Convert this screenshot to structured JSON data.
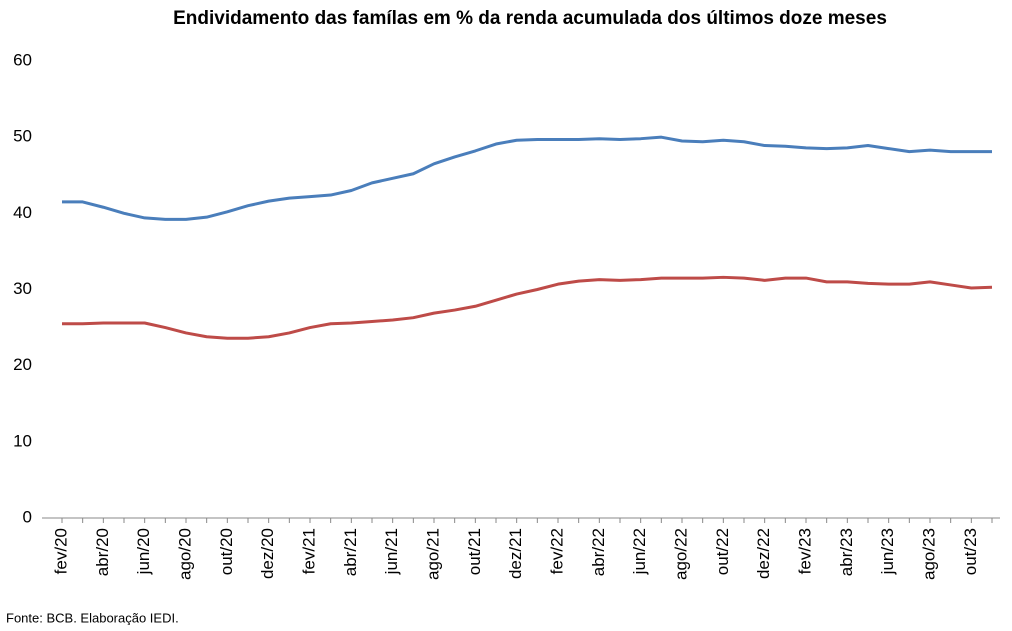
{
  "chart_data": {
    "type": "line",
    "title": "Endividamento das famílas em % da renda acumulada dos últimos doze meses",
    "source": "Fonte: BCB. Elaboração IEDI.",
    "categories": [
      "fev/20",
      null,
      "abr/20",
      null,
      "jun/20",
      null,
      "ago/20",
      null,
      "out/20",
      null,
      "dez/20",
      null,
      "fev/21",
      null,
      "abr/21",
      null,
      "jun/21",
      null,
      "ago/21",
      null,
      "out/21",
      null,
      "dez/21",
      null,
      "fev/22",
      null,
      "abr/22",
      null,
      "jun/22",
      null,
      "ago/22",
      null,
      "out/22",
      null,
      "dez/22",
      null,
      "fev/23",
      null,
      "abr/23",
      null,
      "jun/23",
      null,
      "ago/23",
      null,
      "out/23",
      null
    ],
    "series": [
      {
        "color": "#4a7ebb",
        "values": [
          41.5,
          41.5,
          40.8,
          40,
          39.4,
          39.2,
          39.2,
          39.5,
          40.2,
          41,
          41.6,
          42,
          42.2,
          42.4,
          43,
          44,
          44.6,
          45.2,
          46.5,
          47.4,
          48.2,
          49.1,
          49.6,
          49.7,
          49.7,
          49.7,
          49.8,
          49.7,
          49.8,
          50,
          49.5,
          49.4,
          49.6,
          49.4,
          48.9,
          48.8,
          48.6,
          48.5,
          48.6,
          48.9,
          48.5,
          48.1,
          48.3,
          48.1,
          48.1,
          48.1
        ]
      },
      {
        "color": "#be4b48",
        "values": [
          25.5,
          25.5,
          25.6,
          25.6,
          25.6,
          25,
          24.3,
          23.8,
          23.6,
          23.6,
          23.8,
          24.3,
          25,
          25.5,
          25.6,
          25.8,
          26,
          26.3,
          26.9,
          27.3,
          27.8,
          28.6,
          29.4,
          30,
          30.7,
          31.1,
          31.3,
          31.2,
          31.3,
          31.5,
          31.5,
          31.5,
          31.6,
          31.5,
          31.2,
          31.5,
          31.5,
          31,
          31,
          30.8,
          30.7,
          30.7,
          31,
          30.6,
          30.2,
          30.3
        ]
      }
    ],
    "ylim": [
      0,
      60
    ],
    "yticks": [
      0,
      10,
      20,
      30,
      40,
      50,
      60
    ]
  }
}
